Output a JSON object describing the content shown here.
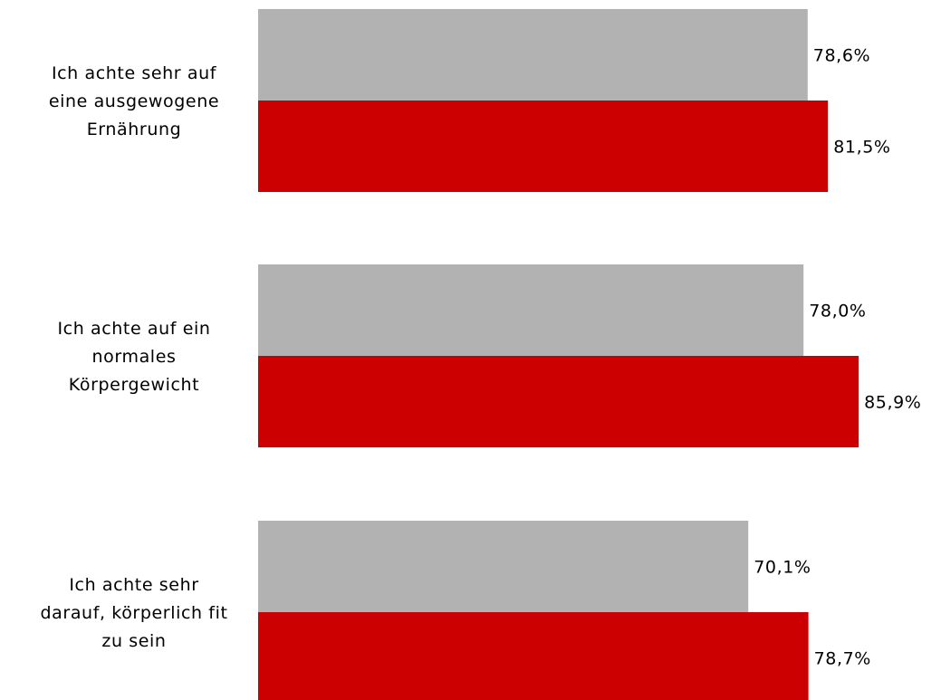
{
  "chart_data": {
    "type": "bar",
    "orientation": "horizontal",
    "categories": [
      [
        "Ich achte sehr auf",
        "eine ausgewogene",
        "Ernährung"
      ],
      [
        "Ich achte auf ein",
        "normales",
        "Körpergewicht"
      ],
      [
        "Ich achte sehr",
        "darauf, körperlich fit",
        "zu sein"
      ]
    ],
    "series": [
      {
        "color": "#b2b2b2",
        "values": [
          78.6,
          78.0,
          70.1
        ],
        "labels": [
          "78,6%",
          "78,0%",
          "70,1%"
        ]
      },
      {
        "color": "#cc0000",
        "values": [
          81.5,
          85.9,
          78.7
        ],
        "labels": [
          "81,5%",
          "85,9%",
          "78,7%"
        ]
      }
    ],
    "xlim": [
      0,
      100
    ],
    "grid": false,
    "legend": "none",
    "title": "",
    "xlabel": "",
    "ylabel": ""
  }
}
